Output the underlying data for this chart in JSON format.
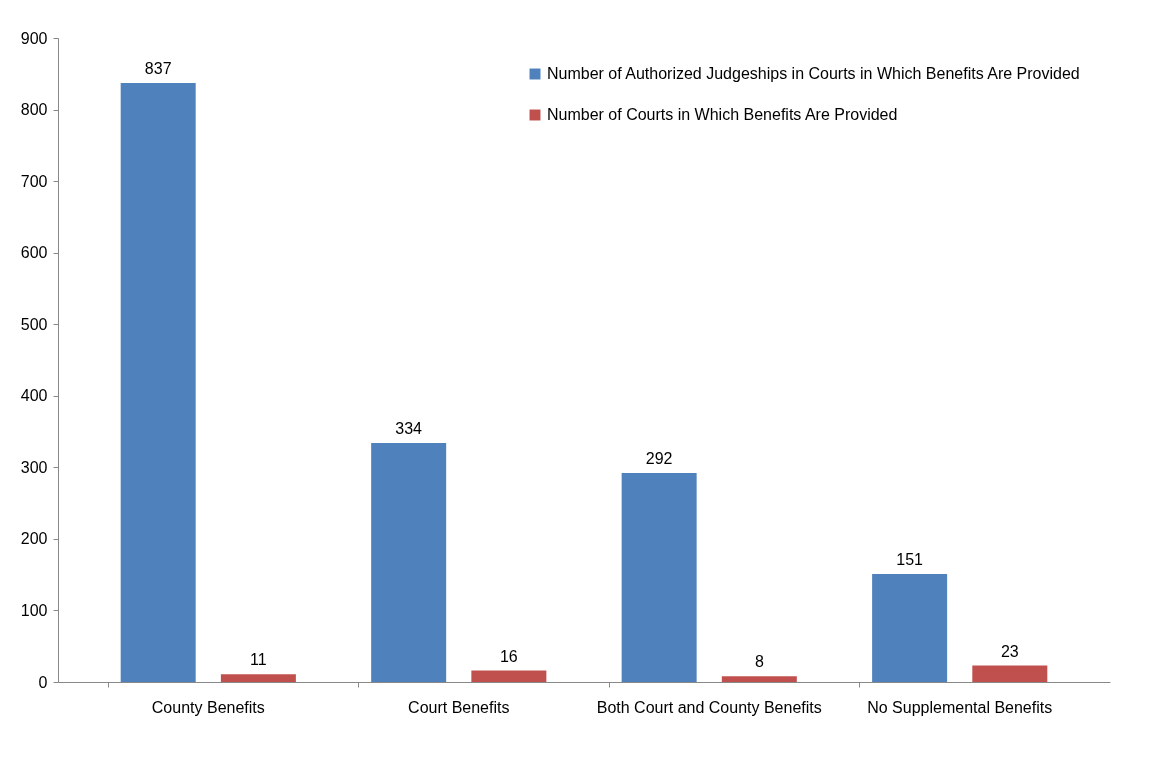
{
  "chart_data": {
    "type": "bar",
    "categories": [
      "County Benefits",
      "Court Benefits",
      "Both Court and County Benefits",
      "No Supplemental Benefits"
    ],
    "series": [
      {
        "name": "Number of Authorized Judgeships in Courts in Which Benefits Are Provided",
        "color": "#4f81bd",
        "values": [
          837,
          334,
          292,
          151
        ]
      },
      {
        "name": "Number of Courts in Which Benefits Are Provided",
        "color": "#c0504d",
        "values": [
          11,
          16,
          8,
          23
        ]
      }
    ],
    "ylim": [
      0,
      900
    ],
    "yticks": [
      0,
      100,
      200,
      300,
      400,
      500,
      600,
      700,
      800,
      900
    ],
    "grid": false,
    "legend": "top right",
    "data_labels": true
  }
}
